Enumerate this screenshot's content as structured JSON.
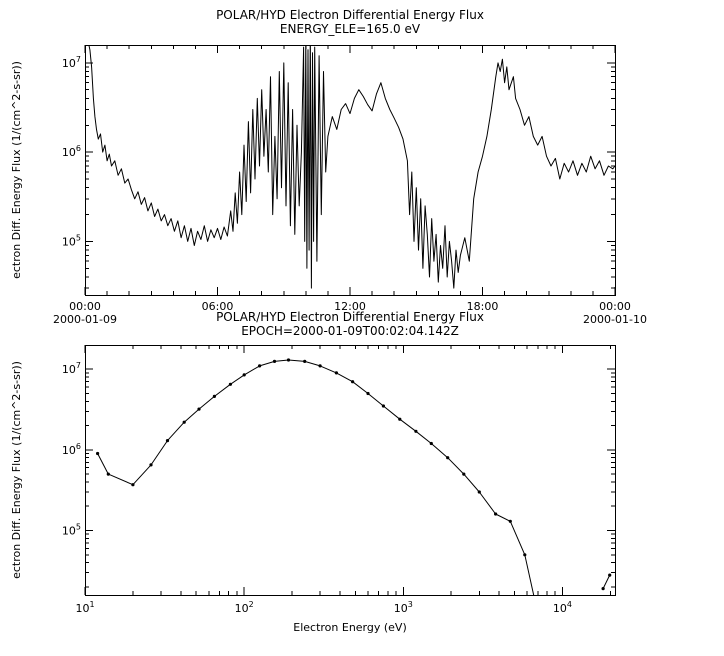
{
  "figure": {
    "background": "#ffffff",
    "line_color": "#000000"
  },
  "chart_data": [
    {
      "type": "line",
      "title": "POLAR/HYD  Electron Differential Energy Flux",
      "subtitle": "ENERGY_ELE=165.0 eV",
      "xlabel": "",
      "ylabel": "ectron Diff. Energy Flux (1/(cm^2-s-sr))",
      "legend": "none",
      "grid": false,
      "x_axis": {
        "scale": "linear",
        "unit": "hours",
        "min": 0,
        "max": 24,
        "minor_step": 1,
        "major": [
          {
            "pos": 0,
            "label": "00:00",
            "sub": "2000-01-09"
          },
          {
            "pos": 6,
            "label": "06:00"
          },
          {
            "pos": 12,
            "label": "12:00"
          },
          {
            "pos": 18,
            "label": "18:00"
          },
          {
            "pos": 24,
            "label": "00:00",
            "sub": "2000-01-10"
          }
        ]
      },
      "y_axis": {
        "scale": "log",
        "min_exp": 4.4,
        "max_exp": 7.2,
        "major_exp": [
          5,
          6,
          7
        ]
      },
      "points": [
        [
          0.0,
          18000000.0
        ],
        [
          0.08,
          20000000.0
        ],
        [
          0.15,
          17000000.0
        ],
        [
          0.22,
          14000000.0
        ],
        [
          0.3,
          9000000.0
        ],
        [
          0.38,
          4000000.0
        ],
        [
          0.45,
          2500000.0
        ],
        [
          0.52,
          1800000.0
        ],
        [
          0.6,
          1400000.0
        ],
        [
          0.7,
          1600000.0
        ],
        [
          0.8,
          1000000.0
        ],
        [
          0.9,
          1200000.0
        ],
        [
          1.0,
          800000.0
        ],
        [
          1.1,
          950000.0
        ],
        [
          1.2,
          700000.0
        ],
        [
          1.35,
          800000.0
        ],
        [
          1.5,
          550000.0
        ],
        [
          1.65,
          650000.0
        ],
        [
          1.8,
          450000.0
        ],
        [
          1.95,
          500000.0
        ],
        [
          2.1,
          380000.0
        ],
        [
          2.25,
          300000.0
        ],
        [
          2.4,
          360000.0
        ],
        [
          2.55,
          260000.0
        ],
        [
          2.7,
          310000.0
        ],
        [
          2.85,
          220000.0
        ],
        [
          3.0,
          270000.0
        ],
        [
          3.15,
          190000.0
        ],
        [
          3.3,
          230000.0
        ],
        [
          3.45,
          170000.0
        ],
        [
          3.6,
          200000.0
        ],
        [
          3.75,
          150000.0
        ],
        [
          3.9,
          180000.0
        ],
        [
          4.05,
          130000.0
        ],
        [
          4.2,
          170000.0
        ],
        [
          4.35,
          110000.0
        ],
        [
          4.5,
          150000.0
        ],
        [
          4.65,
          100000.0
        ],
        [
          4.8,
          140000.0
        ],
        [
          4.95,
          90000.0
        ],
        [
          5.1,
          130000.0
        ],
        [
          5.25,
          105000.0
        ],
        [
          5.4,
          150000.0
        ],
        [
          5.55,
          100000.0
        ],
        [
          5.7,
          135000.0
        ],
        [
          5.85,
          110000.0
        ],
        [
          6.0,
          140000.0
        ],
        [
          6.15,
          105000.0
        ],
        [
          6.3,
          145000.0
        ],
        [
          6.45,
          115000.0
        ],
        [
          6.6,
          220000.0
        ],
        [
          6.7,
          130000.0
        ],
        [
          6.8,
          350000.0
        ],
        [
          6.9,
          160000.0
        ],
        [
          7.0,
          600000.0
        ],
        [
          7.1,
          200000.0
        ],
        [
          7.2,
          1200000.0
        ],
        [
          7.3,
          280000.0
        ],
        [
          7.4,
          2200000.0
        ],
        [
          7.5,
          350000.0
        ],
        [
          7.6,
          3000000.0
        ],
        [
          7.7,
          500000.0
        ],
        [
          7.8,
          4000000.0
        ],
        [
          7.9,
          700000.0
        ],
        [
          8.0,
          5000000.0
        ],
        [
          8.1,
          900000.0
        ],
        [
          8.2,
          3000000.0
        ],
        [
          8.3,
          600000.0
        ],
        [
          8.4,
          7000000.0
        ],
        [
          8.5,
          200000.0
        ],
        [
          8.6,
          1500000.0
        ],
        [
          8.7,
          300000.0
        ],
        [
          8.8,
          8000000.0
        ],
        [
          8.9,
          400000.0
        ],
        [
          9.0,
          10000000.0
        ],
        [
          9.1,
          250000.0
        ],
        [
          9.2,
          6000000.0
        ],
        [
          9.3,
          150000.0
        ],
        [
          9.4,
          3000000.0
        ],
        [
          9.5,
          120000.0
        ],
        [
          9.6,
          2000000.0
        ],
        [
          9.7,
          250000.0
        ],
        [
          9.8,
          1000000.0
        ],
        [
          9.9,
          15000000.0
        ],
        [
          9.95,
          100000.0
        ],
        [
          10.0,
          20000000.0
        ],
        [
          10.05,
          50000.0
        ],
        [
          10.1,
          14000000.0
        ],
        [
          10.15,
          80000.0
        ],
        [
          10.2,
          25000000.0
        ],
        [
          10.25,
          30000.0
        ],
        [
          10.3,
          13000000.0
        ],
        [
          10.35,
          100000.0
        ],
        [
          10.4,
          15000000.0
        ],
        [
          10.5,
          60000.0
        ],
        [
          10.6,
          12000000.0
        ],
        [
          10.7,
          200000.0
        ],
        [
          10.8,
          8000000.0
        ],
        [
          10.9,
          600000.0
        ],
        [
          11.0,
          1500000.0
        ],
        [
          11.2,
          2500000.0
        ],
        [
          11.4,
          1800000.0
        ],
        [
          11.6,
          3000000.0
        ],
        [
          11.8,
          3500000.0
        ],
        [
          12.0,
          2700000.0
        ],
        [
          12.2,
          4000000.0
        ],
        [
          12.4,
          5000000.0
        ],
        [
          12.6,
          4200000.0
        ],
        [
          12.8,
          3400000.0
        ],
        [
          13.0,
          2900000.0
        ],
        [
          13.2,
          4500000.0
        ],
        [
          13.4,
          6000000.0
        ],
        [
          13.6,
          4000000.0
        ],
        [
          13.8,
          3000000.0
        ],
        [
          14.0,
          2400000.0
        ],
        [
          14.2,
          1900000.0
        ],
        [
          14.4,
          1400000.0
        ],
        [
          14.6,
          800000.0
        ],
        [
          14.7,
          200000.0
        ],
        [
          14.8,
          600000.0
        ],
        [
          14.9,
          100000.0
        ],
        [
          15.0,
          400000.0
        ],
        [
          15.1,
          80000.0
        ],
        [
          15.2,
          300000.0
        ],
        [
          15.3,
          50000.0
        ],
        [
          15.4,
          250000.0
        ],
        [
          15.5,
          120000.0
        ],
        [
          15.6,
          40000.0
        ],
        [
          15.7,
          180000.0
        ],
        [
          15.8,
          60000.0
        ],
        [
          15.9,
          120000.0
        ],
        [
          16.0,
          35000.0
        ],
        [
          16.1,
          90000.0
        ],
        [
          16.2,
          50000.0
        ],
        [
          16.3,
          150000.0
        ],
        [
          16.4,
          40000.0
        ],
        [
          16.5,
          100000.0
        ],
        [
          16.6,
          60000.0
        ],
        [
          16.7,
          30000.0
        ],
        [
          16.8,
          80000.0
        ],
        [
          16.9,
          45000.0
        ],
        [
          17.0,
          70000.0
        ],
        [
          17.2,
          110000.0
        ],
        [
          17.4,
          60000.0
        ],
        [
          17.6,
          300000.0
        ],
        [
          17.8,
          600000.0
        ],
        [
          18.0,
          900000.0
        ],
        [
          18.2,
          1500000.0
        ],
        [
          18.4,
          3000000.0
        ],
        [
          18.6,
          7000000.0
        ],
        [
          18.7,
          10000000.0
        ],
        [
          18.8,
          8000000.0
        ],
        [
          18.9,
          11000000.0
        ],
        [
          19.0,
          6000000.0
        ],
        [
          19.1,
          9000000.0
        ],
        [
          19.2,
          5000000.0
        ],
        [
          19.4,
          7000000.0
        ],
        [
          19.5,
          4000000.0
        ],
        [
          19.7,
          3000000.0
        ],
        [
          19.9,
          2000000.0
        ],
        [
          20.1,
          2500000.0
        ],
        [
          20.3,
          1500000.0
        ],
        [
          20.5,
          1200000.0
        ],
        [
          20.7,
          1500000.0
        ],
        [
          20.9,
          900000.0
        ],
        [
          21.1,
          700000.0
        ],
        [
          21.3,
          850000.0
        ],
        [
          21.5,
          500000.0
        ],
        [
          21.7,
          750000.0
        ],
        [
          21.9,
          600000.0
        ],
        [
          22.1,
          800000.0
        ],
        [
          22.3,
          550000.0
        ],
        [
          22.5,
          750000.0
        ],
        [
          22.7,
          600000.0
        ],
        [
          22.9,
          900000.0
        ],
        [
          23.1,
          650000.0
        ],
        [
          23.3,
          800000.0
        ],
        [
          23.5,
          550000.0
        ],
        [
          23.7,
          700000.0
        ],
        [
          23.9,
          650000.0
        ],
        [
          24.0,
          700000.0
        ]
      ]
    },
    {
      "type": "line",
      "marker": "dot",
      "title": "POLAR/HYD  Electron Differential Energy Flux",
      "subtitle": "EPOCH=2000-01-09T00:02:04.142Z",
      "xlabel": "Electron Energy (eV)",
      "ylabel": "ectron Diff. Energy Flux (1/(cm^2-s-sr))",
      "legend": "none",
      "grid": false,
      "x_axis": {
        "scale": "log",
        "unit": "eV",
        "min_exp": 1,
        "max_exp": 4.33,
        "major_exp": [
          1,
          2,
          3,
          4
        ]
      },
      "y_axis": {
        "scale": "log",
        "min_exp": 4.2,
        "max_exp": 7.3,
        "major_exp": [
          5,
          6,
          7
        ]
      },
      "points": [
        [
          12,
          900000.0
        ],
        [
          14,
          500000.0
        ],
        [
          20,
          370000.0
        ],
        [
          26,
          650000.0
        ],
        [
          33,
          1300000.0
        ],
        [
          42,
          2200000.0
        ],
        [
          52,
          3200000.0
        ],
        [
          65,
          4600000.0
        ],
        [
          82,
          6500000.0
        ],
        [
          100,
          8500000.0
        ],
        [
          125,
          11000000.0
        ],
        [
          155,
          12500000.0
        ],
        [
          190,
          13000000.0
        ],
        [
          240,
          12500000.0
        ],
        [
          300,
          11000000.0
        ],
        [
          380,
          9000000.0
        ],
        [
          480,
          7000000.0
        ],
        [
          600,
          5000000.0
        ],
        [
          750,
          3500000.0
        ],
        [
          950,
          2400000.0
        ],
        [
          1200,
          1700000.0
        ],
        [
          1500,
          1200000.0
        ],
        [
          1900,
          800000.0
        ],
        [
          2400,
          500000.0
        ],
        [
          3000,
          300000.0
        ],
        [
          3800,
          160000.0
        ],
        [
          4700,
          130000.0
        ],
        [
          5800,
          50000.0
        ],
        [
          6800,
          12000.0
        ],
        null,
        [
          18000,
          19000.0
        ],
        [
          19800,
          28000.0
        ]
      ]
    }
  ]
}
